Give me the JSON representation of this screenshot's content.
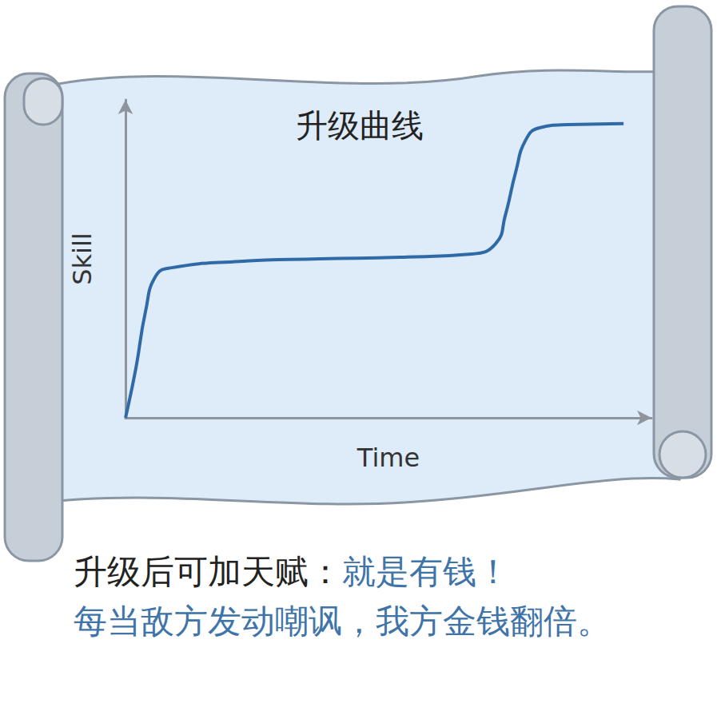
{
  "chart_data": {
    "type": "line",
    "title": "升级曲线",
    "x_label": "Time",
    "y_label": "Skill",
    "x": [
      0,
      2.0,
      3.8,
      5.8,
      8.8,
      21.7,
      36.9,
      52.1,
      65.8,
      70.4,
      72.2,
      74.2,
      76.1,
      78.7,
      84.0,
      94.7
    ],
    "values": [
      0,
      15.8,
      33.4,
      44.7,
      47.2,
      49.2,
      50.0,
      50.5,
      51.5,
      54.8,
      63.6,
      77.4,
      87.4,
      91.2,
      92.2,
      92.5
    ],
    "color": "#2f6aa8",
    "xlim": [
      0,
      100
    ],
    "ylim": [
      0,
      100
    ],
    "tick_labels": false,
    "grid": false,
    "annotations": [
      [
        {
          "text": "升级后可加天赋：",
          "color": "#222222"
        },
        {
          "text": "就是有钱！",
          "color": "#3f74a8"
        }
      ],
      [
        {
          "text": "每当敌方发动嘲讽，我方金钱翻倍。",
          "color": "#3f74a8"
        }
      ]
    ]
  }
}
